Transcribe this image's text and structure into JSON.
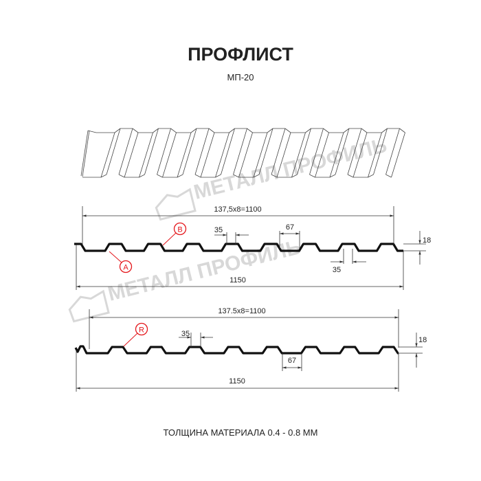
{
  "header": {
    "title": "ПРОФЛИСТ",
    "subtitle": "МП-20"
  },
  "watermark": {
    "text": "МЕТАЛЛ ПРОФИЛЬ",
    "color": "#d8d8d8"
  },
  "profile_1": {
    "pitch_dim": "137,5x8=1100",
    "width_dim": "1150",
    "rib_top_dim": "35",
    "rib_bottom_dim": "35",
    "valley_dim": "67",
    "height_dim": "18",
    "callout_a": "A",
    "callout_b": "B"
  },
  "profile_2": {
    "pitch_dim": "137.5x8=1100",
    "width_dim": "1150",
    "rib_top_dim": "35",
    "valley_dim": "67",
    "height_dim": "18",
    "callout_r": "R"
  },
  "footer": {
    "thickness": "ТОЛЩИНА МАТЕРИАЛА 0.4 - 0.8 ММ"
  },
  "colors": {
    "callout": "#e4161b",
    "profile": "#111111",
    "dimension": "#333333"
  }
}
